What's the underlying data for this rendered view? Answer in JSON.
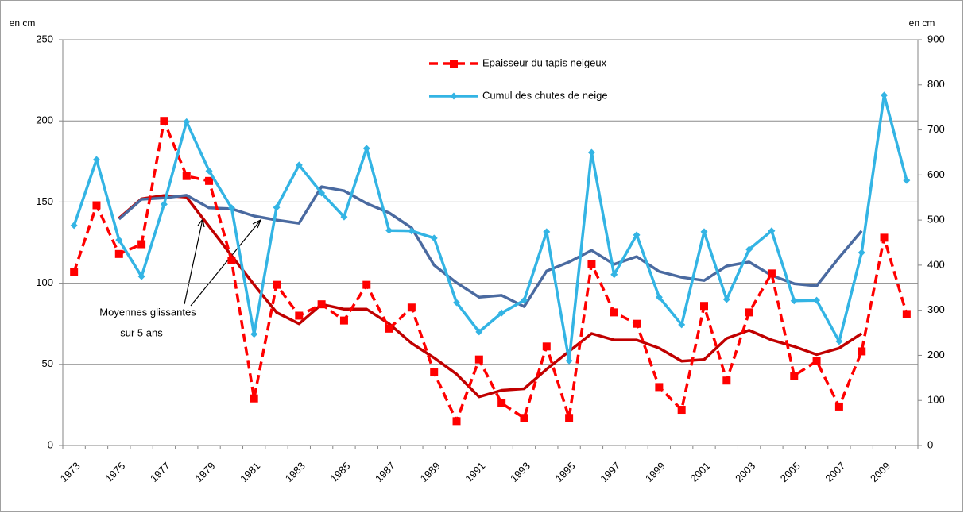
{
  "chart_data": {
    "type": "line",
    "categories": [
      "1973",
      null,
      "1975",
      null,
      "1977",
      null,
      "1979",
      null,
      "1981",
      null,
      "1983",
      null,
      "1985",
      null,
      "1987",
      null,
      "1989",
      null,
      "1991",
      null,
      "1993",
      null,
      "1995",
      null,
      "1997",
      null,
      "1999",
      null,
      "2001",
      null,
      "2003",
      null,
      "2005",
      null,
      "2007",
      null,
      "2009",
      null
    ],
    "series": [
      {
        "name": "Epaisseur du tapis neigeux",
        "color": "#ff0000",
        "dashed": true,
        "marker": "square",
        "axis": "y",
        "values": [
          107,
          148,
          118,
          124,
          200,
          166,
          163,
          114,
          29,
          99,
          80,
          87,
          77,
          99,
          72,
          85,
          45,
          15,
          53,
          26,
          17,
          61,
          17,
          112,
          82,
          75,
          36,
          22,
          86,
          40,
          82,
          106,
          43,
          52,
          24,
          58,
          128,
          81
        ]
      },
      {
        "name": "Cumul des chutes de neige",
        "color": "#33b4e4",
        "dashed": false,
        "marker": "diamond",
        "axis": "y2",
        "values": [
          488,
          634,
          456,
          375,
          535,
          718,
          609,
          527,
          247,
          528,
          622,
          560,
          507,
          659,
          477,
          476,
          460,
          317,
          252,
          294,
          322,
          474,
          188,
          650,
          379,
          467,
          329,
          268,
          474,
          324,
          435,
          476,
          321,
          322,
          231,
          428,
          777,
          588
        ]
      },
      {
        "color": "#c00000",
        "dashed": false,
        "axis": "y",
        "values": [
          null,
          null,
          140,
          152,
          154,
          153,
          135,
          117,
          99,
          82,
          75,
          87,
          84,
          84,
          75,
          63,
          54,
          44,
          30,
          34,
          35,
          47,
          58,
          69,
          65,
          65,
          60,
          52,
          53,
          66,
          71,
          65,
          61,
          56,
          60,
          69,
          null,
          null
        ]
      },
      {
        "color": "#4a6aa0",
        "dashed": false,
        "axis": "y2",
        "values": [
          null,
          null,
          502,
          546,
          549,
          555,
          527,
          525,
          509,
          500,
          493,
          574,
          565,
          537,
          516,
          483,
          400,
          361,
          329,
          333,
          308,
          387,
          407,
          433,
          402,
          419,
          386,
          373,
          366,
          398,
          407,
          377,
          359,
          354,
          417,
          476,
          null,
          null
        ]
      }
    ],
    "y_label": "en cm",
    "y2_label": "en cm",
    "ylim": [
      0,
      250
    ],
    "yticks": [
      0,
      50,
      100,
      150,
      200,
      250
    ],
    "y2lim": [
      0,
      900
    ],
    "y2ticks": [
      0,
      100,
      200,
      300,
      400,
      500,
      600,
      700,
      800,
      900
    ],
    "grid": true,
    "annotation": [
      "Moyennes  glissantes",
      "sur 5 ans"
    ]
  }
}
